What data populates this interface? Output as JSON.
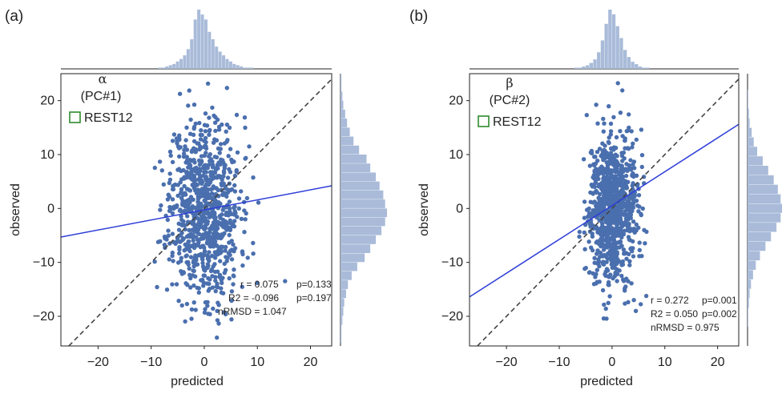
{
  "panels": [
    {
      "label": "(a)",
      "symbol": "α",
      "component": "(PC#1)",
      "legend": "REST12",
      "xlabel": "predicted",
      "ylabel": "observed",
      "stats": {
        "r": "r =  0.075",
        "p_r": "p=0.133",
        "r2": "R2 = -0.096",
        "p_r2": "p=0.197",
        "nrmsd": "nRMSD =  1.047"
      }
    },
    {
      "label": "(b)",
      "symbol": "β",
      "component": "(PC#2)",
      "legend": "REST12",
      "xlabel": "predicted",
      "ylabel": "observed",
      "stats": {
        "r": "r = 0.272",
        "p_r": "p=0.001",
        "r2": "R2 = 0.050",
        "p_r2": "p=0.002",
        "nrmsd": "nRMSD = 0.975"
      }
    }
  ],
  "colors": {
    "points": "#4a6fae",
    "fit_line": "#2f3fd8",
    "identity_line": "#444444",
    "histogram": "#a9bbd9",
    "legend_box": "#2e8b2e"
  },
  "chart_data": [
    {
      "type": "scatter",
      "xlim": [
        -27,
        24
      ],
      "ylim": [
        -25.5,
        25
      ],
      "xticks": [
        -20,
        -10,
        0,
        10,
        20
      ],
      "yticks": [
        -20,
        -10,
        0,
        10,
        20
      ],
      "tick_labels": [
        "−20",
        "−10",
        "0",
        "10",
        "20"
      ],
      "fit_line": {
        "x": [
          -27,
          24
        ],
        "y": [
          -5.3,
          4.2
        ]
      },
      "identity_line": true,
      "scatter": {
        "x_center": 0,
        "x_spread": 3.3,
        "y_center": 0,
        "y_spread": 8.5,
        "count": 900
      },
      "marginal_x": [
        0,
        0,
        0,
        0,
        0,
        1,
        1,
        2,
        3,
        4,
        6,
        8,
        11,
        16,
        24,
        40,
        48,
        44,
        40,
        30,
        24,
        18,
        14,
        11,
        8,
        6,
        4,
        3,
        2,
        1,
        1,
        1,
        0,
        0,
        0,
        0
      ],
      "marginal_y": [
        1,
        1,
        2,
        3,
        4,
        6,
        8,
        12,
        18,
        26,
        32,
        38,
        44,
        48,
        50,
        48,
        46,
        42,
        38,
        32,
        28,
        20,
        14,
        10,
        7,
        5,
        3,
        2,
        1,
        1
      ],
      "marginal_x_range": [
        -12,
        12
      ],
      "marginal_y_range": [
        -25,
        25
      ]
    },
    {
      "type": "scatter",
      "xlim": [
        -27,
        24
      ],
      "ylim": [
        -25.5,
        25
      ],
      "xticks": [
        -20,
        -10,
        0,
        10,
        20
      ],
      "yticks": [
        -20,
        -10,
        0,
        10,
        20
      ],
      "tick_labels": [
        "−20",
        "−10",
        "0",
        "10",
        "20"
      ],
      "fit_line": {
        "x": [
          -27,
          24
        ],
        "y": [
          -16.4,
          15.6
        ]
      },
      "identity_line": true,
      "scatter": {
        "x_center": 0,
        "x_spread": 2.3,
        "y_center": 0,
        "y_spread": 6.8,
        "count": 900
      },
      "marginal_x": [
        0,
        0,
        0,
        0,
        1,
        1,
        2,
        3,
        5,
        8,
        14,
        24,
        38,
        50,
        46,
        36,
        26,
        16,
        10,
        6,
        4,
        2,
        1,
        1,
        0,
        0,
        0,
        0
      ],
      "marginal_y": [
        1,
        1,
        2,
        3,
        5,
        8,
        12,
        18,
        26,
        34,
        42,
        48,
        50,
        48,
        44,
        38,
        30,
        22,
        14,
        9,
        6,
        3,
        2,
        1,
        1
      ],
      "marginal_x_range": [
        -10,
        10
      ],
      "marginal_y_range": [
        -22,
        22
      ]
    }
  ]
}
